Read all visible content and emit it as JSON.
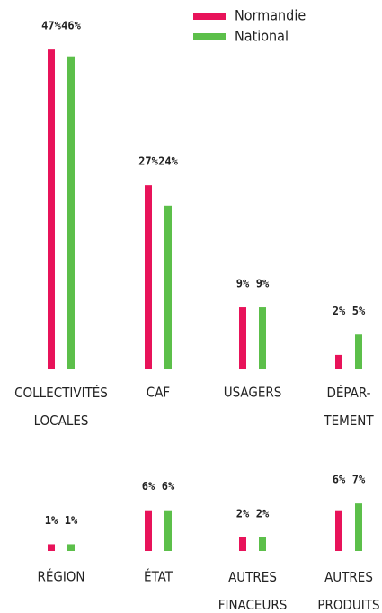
{
  "chart_data": {
    "type": "bar",
    "categories": [
      "COLLECTIVITÉS\nLOCALES",
      "CAF",
      "USAGERS",
      "DÉPAR-\nTEMENT",
      "RÉGION",
      "ÉTAT",
      "AUTRES\nFINACEURS",
      "AUTRES\nPRODUITS"
    ],
    "series": [
      {
        "name": "Normandie",
        "color": "#e8135a",
        "values": [
          47,
          27,
          9,
          2,
          1,
          6,
          2,
          6
        ],
        "value_labels": [
          "47%",
          "27%",
          "9%",
          "2%",
          "1%",
          "6%",
          "2%",
          "6%"
        ]
      },
      {
        "name": "National",
        "color": "#5cbf4a",
        "values": [
          46,
          24,
          9,
          5,
          1,
          6,
          2,
          7
        ],
        "value_labels": [
          "46%",
          "24%",
          "9%",
          "5%",
          "1%",
          "6%",
          "2%",
          "7%"
        ]
      }
    ]
  }
}
